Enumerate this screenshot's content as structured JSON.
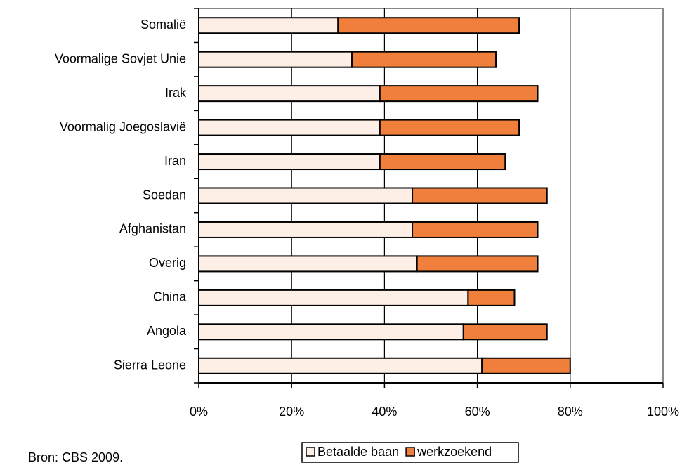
{
  "chart_data": {
    "type": "stacked-bar-horizontal",
    "categories": [
      "Somalië",
      "Voormalige Sovjet Unie",
      "Irak",
      "Voormalig Joegoslavië",
      "Iran",
      "Soedan",
      "Afghanistan",
      "Overig",
      "China",
      "Angola",
      "Sierra Leone"
    ],
    "series": [
      {
        "name": "Betaalde baan",
        "color": "#fdeee6",
        "values": [
          30,
          33,
          39,
          39,
          39,
          46,
          46,
          47,
          58,
          57,
          61
        ]
      },
      {
        "name": "werkzoekend",
        "color": "#f07f3c",
        "values": [
          39,
          31,
          34,
          30,
          27,
          29,
          27,
          26,
          10,
          18,
          19
        ]
      }
    ],
    "xlim": [
      0,
      100
    ],
    "xticks": [
      {
        "value": 0,
        "label": "0%"
      },
      {
        "value": 20,
        "label": "20%"
      },
      {
        "value": 40,
        "label": "40%"
      },
      {
        "value": 60,
        "label": "60%"
      },
      {
        "value": 80,
        "label": "80%"
      },
      {
        "value": 100,
        "label": "100%"
      }
    ],
    "grid": true,
    "legend": "bottom",
    "source": "Bron: CBS 2009."
  }
}
